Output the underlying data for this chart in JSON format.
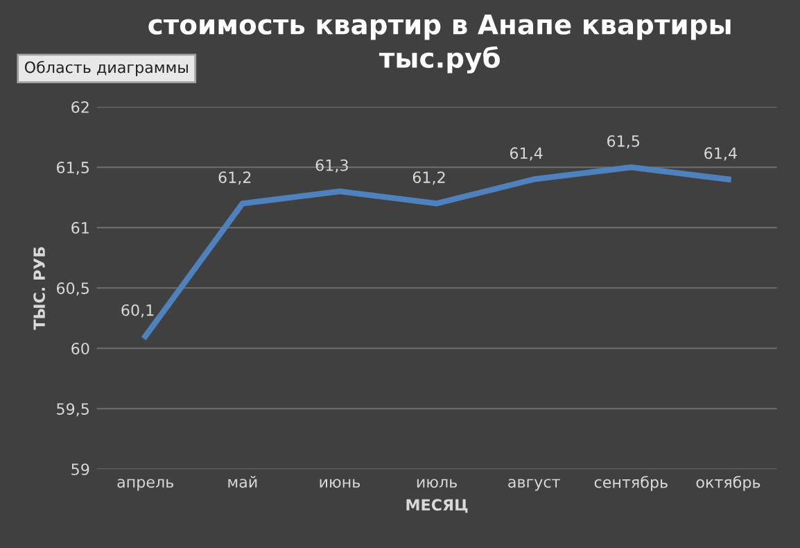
{
  "chart_data": {
    "type": "line",
    "title": "стоимость квартир в Анапе квартиры\nтыс.руб",
    "xlabel": "МЕСЯЦ",
    "ylabel": "ТЫС. РУБ",
    "categories": [
      "апрель",
      "май",
      "июнь",
      "июль",
      "август",
      "сентябрь",
      "октябрь"
    ],
    "series": [
      {
        "color": "#4f81bd",
        "values": [
          60.1,
          61.2,
          61.3,
          61.2,
          61.4,
          61.5,
          61.4
        ],
        "value_labels": [
          "60,1",
          "61,2",
          "61,3",
          "61,2",
          "61,4",
          "61,5",
          "61,4"
        ]
      }
    ],
    "ylim": [
      59,
      62
    ],
    "yticks": [
      59,
      {
        "value": 59.5,
        "label": "59,5"
      },
      60,
      {
        "value": 60.5,
        "label": "60,5"
      },
      61,
      {
        "value": 61.5,
        "label": "61,5"
      },
      62
    ],
    "grid": "y",
    "marker": "none",
    "line_style": "solid",
    "annotations": [
      "Область диаграммы"
    ]
  }
}
